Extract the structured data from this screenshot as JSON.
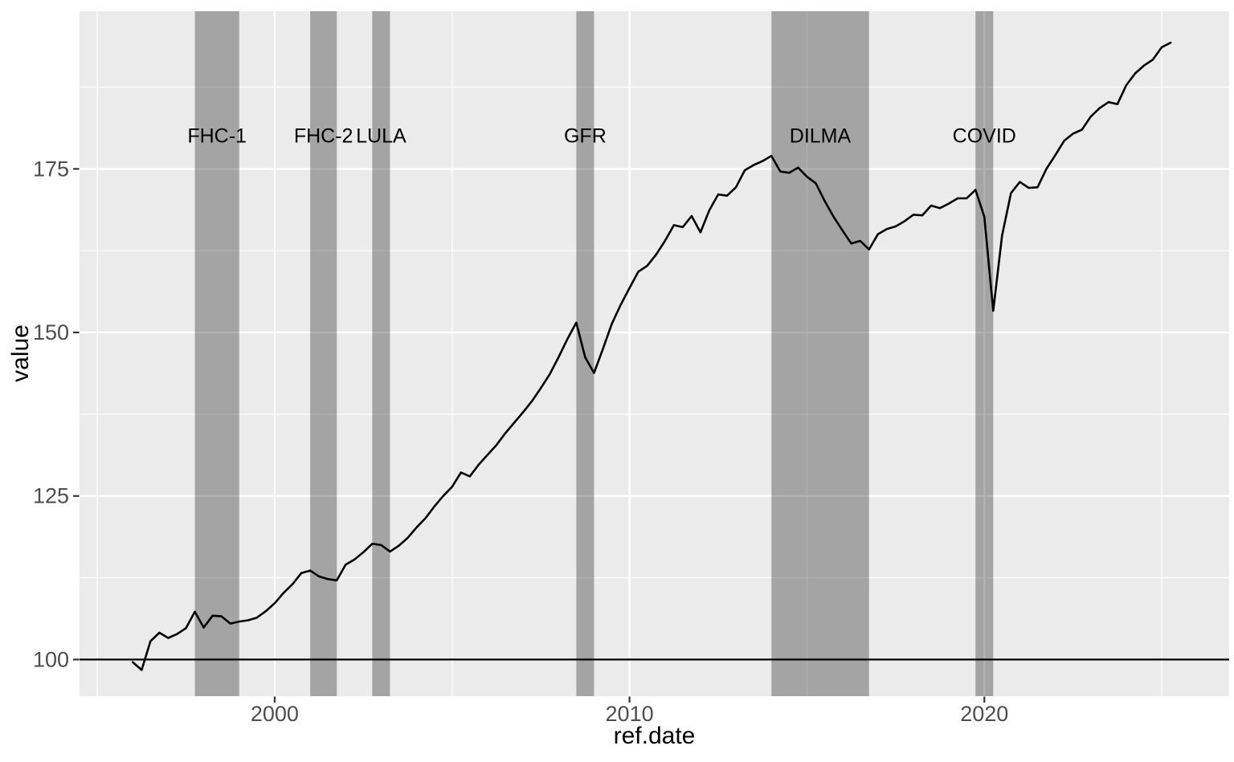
{
  "chart_data": {
    "type": "line",
    "title": "",
    "xlabel": "ref.date",
    "ylabel": "value",
    "grid": "on",
    "legend_position": "none",
    "xlim": [
      1994.5,
      2026.9
    ],
    "ylim": [
      94.4,
      199.1
    ],
    "x_major_ticks": [
      {
        "label": "2000",
        "value": 2000
      },
      {
        "label": "2010",
        "value": 2010
      },
      {
        "label": "2020",
        "value": 2020
      }
    ],
    "x_minor_gridlines": [
      1995,
      2005,
      2015,
      2025
    ],
    "y_major_ticks": [
      {
        "label": "100",
        "value": 100
      },
      {
        "label": "125",
        "value": 125
      },
      {
        "label": "150",
        "value": 150
      },
      {
        "label": "175",
        "value": 175
      }
    ],
    "y_minor_gridlines": [
      112.5,
      137.5,
      162.5,
      187.5
    ],
    "hline_y": 100,
    "band_label_value": 180,
    "bands": [
      {
        "label": "FHC-1",
        "start": 1997.75,
        "end": 1999.0
      },
      {
        "label": "FHC-2",
        "start": 2001.0,
        "end": 2001.75
      },
      {
        "label": "LULA",
        "start": 2002.75,
        "end": 2003.25
      },
      {
        "label": "GFR",
        "start": 2008.5,
        "end": 2009.0
      },
      {
        "label": "DILMA",
        "start": 2014.0,
        "end": 2016.75
      },
      {
        "label": "COVID",
        "start": 2019.75,
        "end": 2020.25
      }
    ],
    "series": [
      {
        "name": "value",
        "x_start": 1996.0,
        "x_step": 0.25,
        "values": [
          99.6,
          98.4,
          102.8,
          104.1,
          103.3,
          103.9,
          104.8,
          107.3,
          104.9,
          106.7,
          106.6,
          105.5,
          105.8,
          106.0,
          106.4,
          107.4,
          108.6,
          110.2,
          111.5,
          113.2,
          113.6,
          112.7,
          112.3,
          112.1,
          114.5,
          115.3,
          116.4,
          117.7,
          117.5,
          116.5,
          117.4,
          118.6,
          120.2,
          121.6,
          123.4,
          125.0,
          126.4,
          128.6,
          128.0,
          129.8,
          131.3,
          132.8,
          134.6,
          136.2,
          137.8,
          139.5,
          141.5,
          143.6,
          146.2,
          149.0,
          151.5,
          146.2,
          143.8,
          147.5,
          151.3,
          154.2,
          156.8,
          159.3,
          160.2,
          161.9,
          164.0,
          166.4,
          166.1,
          167.8,
          165.3,
          168.7,
          171.1,
          170.9,
          172.2,
          174.8,
          175.6,
          176.2,
          177.0,
          174.6,
          174.4,
          175.2,
          173.8,
          172.8,
          170.1,
          167.7,
          165.6,
          163.6,
          164.0,
          162.7,
          165.0,
          165.8,
          166.2,
          167.0,
          168.0,
          167.9,
          169.4,
          169.0,
          169.7,
          170.5,
          170.5,
          171.8,
          167.7,
          153.3,
          164.8,
          171.3,
          173.0,
          172.1,
          172.2,
          175.0,
          177.1,
          179.3,
          180.4,
          181.0,
          183.0,
          184.3,
          185.2,
          184.9,
          187.8,
          189.6,
          190.8,
          191.7,
          193.6,
          194.3
        ]
      }
    ],
    "colors": {
      "panel_bg": "#EBEBEB",
      "gridline": "#FFFFFF",
      "band_fill": "rgba(0,0,0,0.30)",
      "line": "#000000",
      "hline": "#000000",
      "tick_mark": "#333333",
      "tick_label": "#4D4D4D",
      "band_label": "#000000",
      "axis_title": "#000000"
    }
  }
}
